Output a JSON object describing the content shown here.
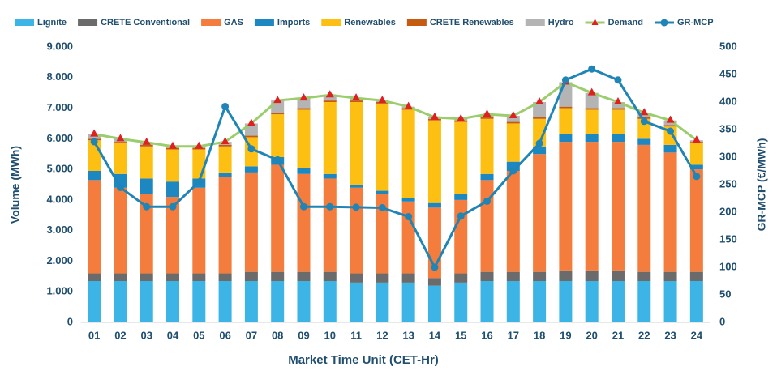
{
  "chart_data": {
    "type": "bar",
    "stacked": true,
    "xlabel": "Market Time Unit (CET-Hr)",
    "ylabel": "Volume (MWh)",
    "y2label": "GR-MCP (€/MWh)",
    "categories": [
      "01",
      "02",
      "03",
      "04",
      "05",
      "06",
      "07",
      "08",
      "09",
      "10",
      "11",
      "12",
      "13",
      "14",
      "15",
      "16",
      "17",
      "18",
      "19",
      "20",
      "21",
      "22",
      "23",
      "24"
    ],
    "ylim": [
      0,
      9000
    ],
    "yticks": [
      {
        "value": 0,
        "label": "0"
      },
      {
        "value": 1000,
        "label": "1.000"
      },
      {
        "value": 2000,
        "label": "2.000"
      },
      {
        "value": 3000,
        "label": "3.000"
      },
      {
        "value": 4000,
        "label": "4.000"
      },
      {
        "value": 5000,
        "label": "5.000"
      },
      {
        "value": 6000,
        "label": "6.000"
      },
      {
        "value": 7000,
        "label": "7.000"
      },
      {
        "value": 8000,
        "label": "8.000"
      },
      {
        "value": 9000,
        "label": "9.000"
      }
    ],
    "y2lim": [
      0,
      500
    ],
    "y2ticks": [
      0,
      50,
      100,
      150,
      200,
      250,
      300,
      350,
      400,
      450,
      500
    ],
    "legend": "top",
    "series": [
      {
        "name": "Lignite",
        "color": "#3cb4e5",
        "values": [
          1350,
          1350,
          1350,
          1350,
          1350,
          1350,
          1350,
          1350,
          1350,
          1350,
          1300,
          1300,
          1300,
          1200,
          1300,
          1350,
          1350,
          1350,
          1350,
          1350,
          1350,
          1350,
          1350,
          1350
        ]
      },
      {
        "name": "CRETE Conventional",
        "color": "#6b6b6b",
        "values": [
          250,
          250,
          250,
          250,
          250,
          250,
          300,
          300,
          300,
          300,
          300,
          300,
          300,
          250,
          300,
          300,
          300,
          300,
          350,
          350,
          350,
          300,
          300,
          300
        ]
      },
      {
        "name": "GAS",
        "color": "#f47c3c",
        "values": [
          3050,
          2800,
          2600,
          2500,
          2800,
          3150,
          3250,
          3500,
          3200,
          3050,
          2800,
          2600,
          2350,
          2300,
          2400,
          3000,
          3300,
          3850,
          4200,
          4200,
          4200,
          4150,
          3900,
          3350
        ]
      },
      {
        "name": "Imports",
        "color": "#1c87c1",
        "values": [
          300,
          450,
          500,
          500,
          300,
          150,
          200,
          250,
          200,
          150,
          100,
          100,
          100,
          150,
          200,
          200,
          300,
          250,
          250,
          250,
          250,
          200,
          250,
          150
        ]
      },
      {
        "name": "Renewables",
        "color": "#fdc012",
        "values": [
          1000,
          1000,
          1050,
          1050,
          950,
          850,
          950,
          1400,
          1900,
          2350,
          2700,
          2850,
          2900,
          2700,
          2350,
          1800,
          1250,
          900,
          850,
          800,
          800,
          650,
          600,
          700
        ]
      },
      {
        "name": "CRETE Renewables",
        "color": "#c55a11",
        "values": [
          50,
          50,
          50,
          50,
          50,
          50,
          50,
          50,
          50,
          50,
          50,
          50,
          50,
          50,
          50,
          50,
          50,
          50,
          50,
          50,
          50,
          50,
          50,
          50
        ]
      },
      {
        "name": "Hydro",
        "color": "#b4b4b4",
        "values": [
          150,
          100,
          80,
          50,
          50,
          100,
          400,
          400,
          330,
          180,
          80,
          50,
          50,
          50,
          50,
          100,
          200,
          500,
          800,
          500,
          200,
          150,
          150,
          50
        ]
      },
      {
        "name": "Demand",
        "type": "line",
        "marker": "triangle",
        "color": "#9acd6b",
        "marker_color": "#e02020",
        "values": [
          6150,
          6000,
          5880,
          5750,
          5750,
          5900,
          6500,
          7250,
          7330,
          7430,
          7330,
          7250,
          7050,
          6700,
          6650,
          6800,
          6750,
          7200,
          7850,
          7500,
          7200,
          6850,
          6600,
          5950
        ]
      },
      {
        "name": "GR-MCP",
        "type": "line",
        "marker": "circle",
        "axis": "y2",
        "color": "#1f84b6",
        "values": [
          328,
          245,
          210,
          210,
          255,
          392,
          315,
          295,
          210,
          210,
          209,
          208,
          192,
          100,
          193,
          220,
          275,
          325,
          440,
          460,
          440,
          365,
          347,
          265
        ]
      }
    ]
  }
}
